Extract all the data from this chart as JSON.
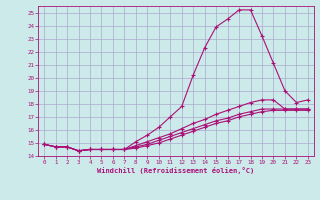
{
  "xlabel": "Windchill (Refroidissement éolien,°C)",
  "background_color": "#cceaea",
  "grid_color": "#aaaacc",
  "line_color": "#aa1177",
  "xlim": [
    -0.5,
    23.5
  ],
  "ylim": [
    14,
    25.5
  ],
  "yticks": [
    14,
    15,
    16,
    17,
    18,
    19,
    20,
    21,
    22,
    23,
    24,
    25
  ],
  "xticks": [
    0,
    1,
    2,
    3,
    4,
    5,
    6,
    7,
    8,
    9,
    10,
    11,
    12,
    13,
    14,
    15,
    16,
    17,
    18,
    19,
    20,
    21,
    22,
    23
  ],
  "line1_x": [
    0,
    1,
    2,
    3,
    4,
    5,
    6,
    7,
    8,
    9,
    10,
    11,
    12,
    13,
    14,
    15,
    16,
    17,
    18,
    19,
    20,
    21,
    22,
    23
  ],
  "line1_y": [
    14.9,
    14.7,
    14.7,
    14.4,
    14.5,
    14.5,
    14.5,
    14.5,
    15.1,
    15.6,
    16.2,
    17.0,
    17.8,
    20.2,
    22.3,
    23.9,
    24.5,
    25.2,
    25.2,
    23.2,
    21.1,
    19.0,
    18.1,
    18.3
  ],
  "line2_x": [
    0,
    1,
    2,
    3,
    4,
    5,
    6,
    7,
    8,
    9,
    10,
    11,
    12,
    13,
    14,
    15,
    16,
    17,
    18,
    19,
    20,
    21,
    22,
    23
  ],
  "line2_y": [
    14.9,
    14.7,
    14.7,
    14.4,
    14.5,
    14.5,
    14.5,
    14.5,
    14.8,
    15.1,
    15.4,
    15.7,
    16.1,
    16.5,
    16.8,
    17.2,
    17.5,
    17.8,
    18.1,
    18.3,
    18.3,
    17.6,
    17.6,
    17.6
  ],
  "line3_x": [
    0,
    1,
    2,
    3,
    4,
    5,
    6,
    7,
    8,
    9,
    10,
    11,
    12,
    13,
    14,
    15,
    16,
    17,
    18,
    19,
    20,
    21,
    22,
    23
  ],
  "line3_y": [
    14.9,
    14.7,
    14.7,
    14.4,
    14.5,
    14.5,
    14.5,
    14.5,
    14.7,
    14.9,
    15.2,
    15.5,
    15.8,
    16.1,
    16.4,
    16.7,
    16.9,
    17.2,
    17.4,
    17.6,
    17.6,
    17.6,
    17.6,
    17.6
  ],
  "line4_x": [
    0,
    1,
    2,
    3,
    4,
    5,
    6,
    7,
    8,
    9,
    10,
    11,
    12,
    13,
    14,
    15,
    16,
    17,
    18,
    19,
    20,
    21,
    22,
    23
  ],
  "line4_y": [
    14.9,
    14.7,
    14.7,
    14.4,
    14.5,
    14.5,
    14.5,
    14.5,
    14.6,
    14.8,
    15.0,
    15.3,
    15.6,
    15.9,
    16.2,
    16.5,
    16.7,
    17.0,
    17.2,
    17.4,
    17.5,
    17.5,
    17.5,
    17.5
  ]
}
